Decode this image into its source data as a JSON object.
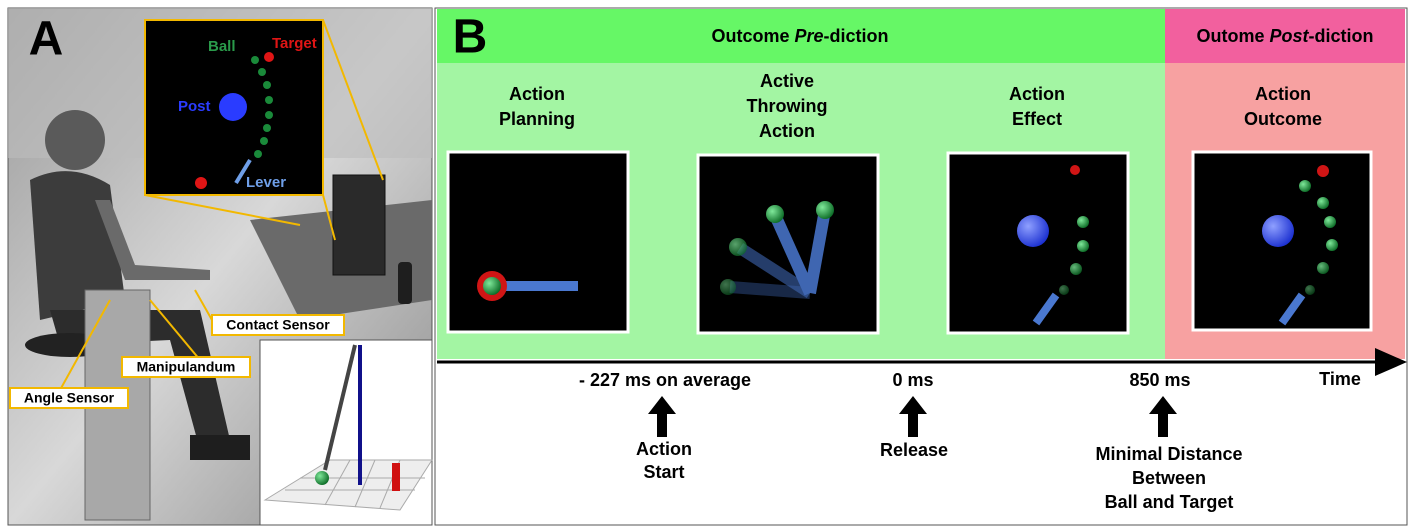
{
  "panel_a": {
    "label": "A",
    "inset": {
      "ball": "Ball",
      "target": "Target",
      "post": "Post",
      "lever": "Lever"
    },
    "callouts": [
      "Contact Sensor",
      "Manipulandum",
      "Angle Sensor"
    ]
  },
  "panel_b": {
    "label": "B",
    "headers": [
      {
        "parts": [
          "Outcome ",
          "Pre",
          "-diction"
        ]
      },
      {
        "parts": [
          "Outome ",
          "Post",
          "-diction"
        ]
      }
    ],
    "stages": [
      {
        "lines": [
          "Action",
          "Planning"
        ]
      },
      {
        "lines": [
          "Active",
          "Throwing",
          "Action"
        ]
      },
      {
        "lines": [
          "Action",
          "Effect"
        ]
      },
      {
        "lines": [
          "Action",
          "Outcome"
        ]
      }
    ],
    "timeline": {
      "axis_label": "Time",
      "marks": [
        {
          "time": "- 227 ms on average",
          "event": [
            "Action",
            "Start"
          ]
        },
        {
          "time": "0 ms",
          "event": [
            "Release"
          ]
        },
        {
          "time": "850 ms",
          "event": [
            "Minimal Distance",
            "Between",
            "Ball and Target"
          ]
        }
      ]
    }
  }
}
